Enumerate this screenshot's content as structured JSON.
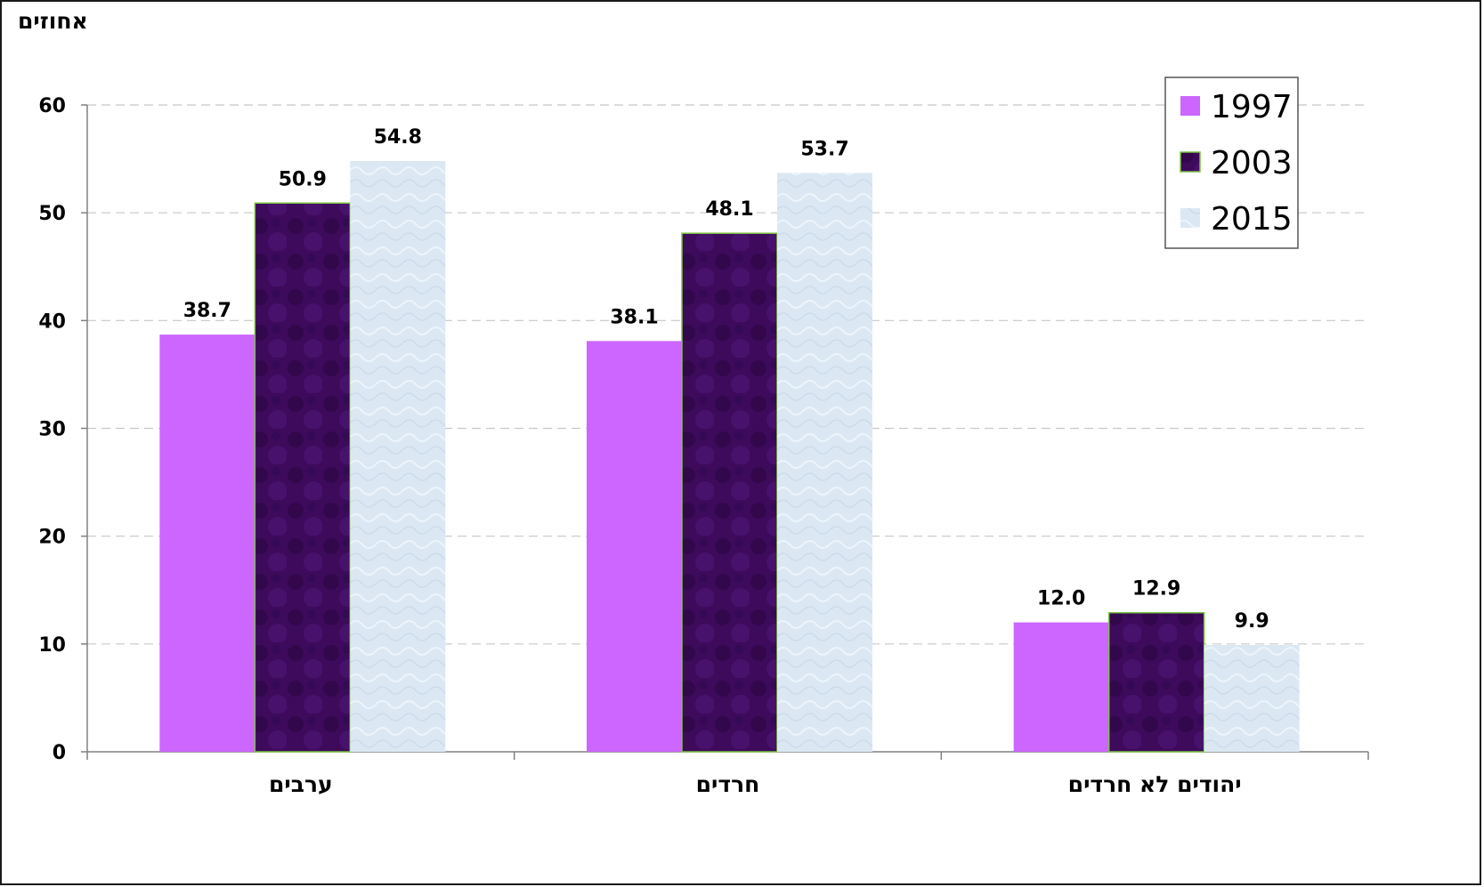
{
  "chart_data": {
    "type": "bar",
    "ylabel": "אחוזים",
    "ylim": [
      0,
      60
    ],
    "yticks": [
      0,
      10,
      20,
      30,
      40,
      50,
      60
    ],
    "grid": true,
    "legend_position": "top-right",
    "categories": [
      "ערבים",
      "חרדים",
      "יהודים לא חרדים"
    ],
    "series": [
      {
        "name": "1997",
        "values": [
          38.7,
          38.1,
          12.0
        ],
        "labels": [
          "38.7",
          "38.1",
          "12.0"
        ],
        "color": "#cc66ff"
      },
      {
        "name": "2003",
        "values": [
          50.9,
          48.1,
          12.9
        ],
        "labels": [
          "50.9",
          "48.1",
          "12.9"
        ],
        "color": "#3d0a5c"
      },
      {
        "name": "2015",
        "values": [
          54.8,
          53.7,
          9.9
        ],
        "labels": [
          "54.8",
          "53.7",
          "9.9"
        ],
        "color": "#dbe8f4"
      }
    ]
  }
}
